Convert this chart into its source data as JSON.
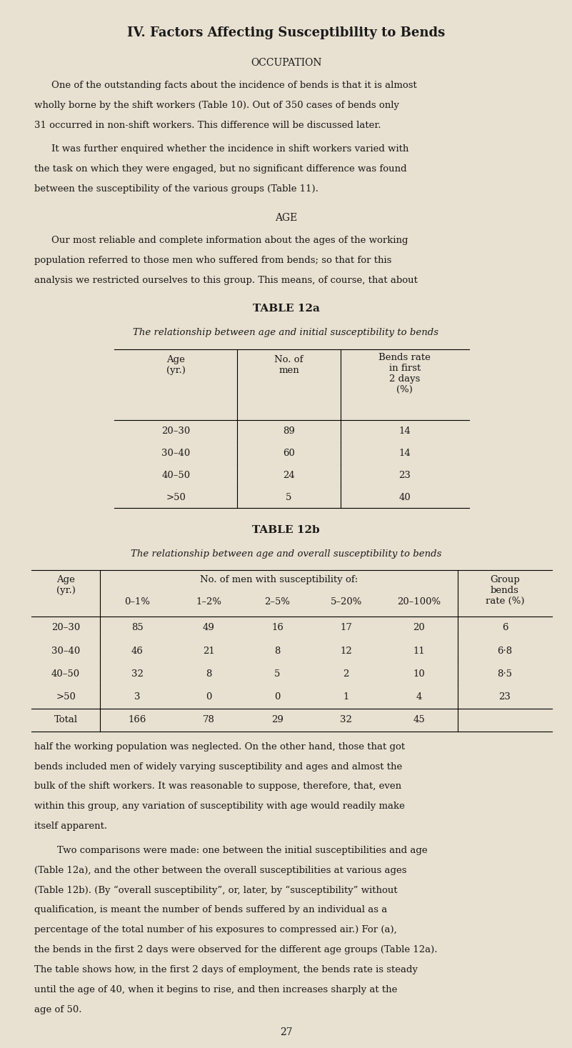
{
  "bg_color": "#e8e0d0",
  "text_color": "#1a1a1a",
  "page_width": 8.01,
  "page_height": 14.67,
  "main_title": "IV. Factors Affecting Susceptibility to Bends",
  "section1_title": "OCCUPATION",
  "section2_title": "AGE",
  "para1_lines": [
    "One of the outstanding facts about the incidence of bends is that it is almost",
    "wholly borne by the shift workers (Table 10). Out of 350 cases of bends only",
    "31 occurred in non-shift workers. This difference will be discussed later."
  ],
  "para2_lines": [
    "It was further enquired whether the incidence in shift workers varied with",
    "the task on which they were engaged, but no significant difference was found",
    "between the susceptibility of the various groups (Table 11)."
  ],
  "para3_lines": [
    "Our most reliable and complete information about the ages of the working",
    "population referred to those men who suffered from bends; so that for this",
    "analysis we restricted ourselves to this group. This means, of course, that about"
  ],
  "table12a_title": "TABLE 12a",
  "table12a_subtitle": "The relationship between age and initial susceptibility to bends",
  "table12a_data": [
    [
      "20–30",
      "89",
      "14"
    ],
    [
      "30–40",
      "60",
      "14"
    ],
    [
      "40–50",
      "24",
      "23"
    ],
    [
      ">50",
      "5",
      "40"
    ]
  ],
  "table12b_title": "TABLE 12b",
  "table12b_subtitle": "The relationship between age and overall susceptibility to bends",
  "table12b_subheaders": [
    "0–1%",
    "1–2%",
    "2–5%",
    "5–20%",
    "20–100%"
  ],
  "table12b_data": [
    [
      "20–30",
      "85",
      "49",
      "16",
      "17",
      "20",
      "6"
    ],
    [
      "30–40",
      "46",
      "21",
      "8",
      "12",
      "11",
      "6·8"
    ],
    [
      "40–50",
      "32",
      "8",
      "5",
      "2",
      "10",
      "8·5"
    ],
    [
      ">50",
      "3",
      "0",
      "0",
      "1",
      "4",
      "23"
    ]
  ],
  "table12b_total": [
    "Total",
    "166",
    "78",
    "29",
    "32",
    "45",
    ""
  ],
  "para4_lines": [
    "half the working population was neglected. On the other hand, those that got",
    "bends included men of widely varying susceptibility and ages and almost the",
    "bulk of the shift workers. It was reasonable to suppose, therefore, that, even",
    "within this group, any variation of susceptibility with age would readily make",
    "itself apparent."
  ],
  "para5_lines": [
    [
      true,
      "Two comparisons were made: one between the initial susceptibilities and age"
    ],
    [
      false,
      "(Table 12a), and the other between the overall susceptibilities at various ages"
    ],
    [
      false,
      "(Table 12b). (By “overall susceptibility”, or, later, by “susceptibility” without"
    ],
    [
      false,
      "qualification, is meant the number of bends suffered by an individual as a"
    ],
    [
      false,
      "percentage of the total number of his exposures to compressed air.) For (a),"
    ],
    [
      false,
      "the bends in the first 2 days were observed for the different age groups (Table 12a)."
    ],
    [
      false,
      "The table shows how, in the first 2 days of employment, the bends rate is steady"
    ],
    [
      false,
      "until the age of 40, when it begins to rise, and then increases sharply at the"
    ],
    [
      false,
      "age of 50."
    ]
  ],
  "page_number": "27"
}
